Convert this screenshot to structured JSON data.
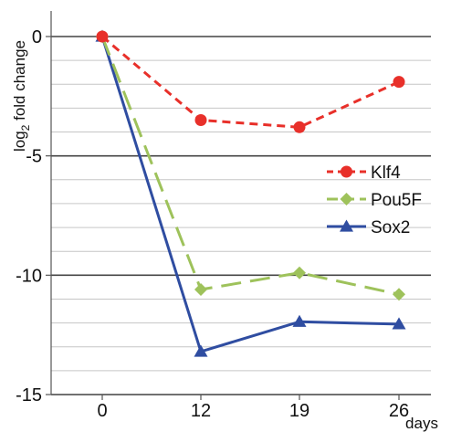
{
  "chart_data": {
    "type": "line",
    "x": [
      0,
      12,
      19,
      26
    ],
    "xtick_labels": [
      "0",
      "12",
      "19",
      "26"
    ],
    "xlabel": "days",
    "ylabel": {
      "prefix": "log",
      "subscript": "2",
      "suffix": " fold change"
    },
    "ylim": [
      -15,
      0
    ],
    "yticks": [
      0,
      -5,
      -10,
      -15
    ],
    "ytick_labels": [
      "0",
      "-5",
      "-10",
      "-15"
    ],
    "grid": true,
    "grid_step": 1,
    "legend": "right",
    "series": [
      {
        "name": "Klf4",
        "color": "#e8302a",
        "dash": "dashed",
        "marker": "circle",
        "values": [
          0,
          -3.5,
          -3.8,
          -1.9
        ]
      },
      {
        "name": "Pou5F",
        "color": "#9ec25b",
        "dash": "long-dashed",
        "marker": "diamond",
        "values": [
          0,
          -10.6,
          -9.9,
          -10.8
        ]
      },
      {
        "name": "Sox2",
        "color": "#2f4da1",
        "dash": "solid",
        "marker": "triangle",
        "values": [
          0,
          -13.2,
          -11.95,
          -12.05
        ]
      }
    ]
  }
}
